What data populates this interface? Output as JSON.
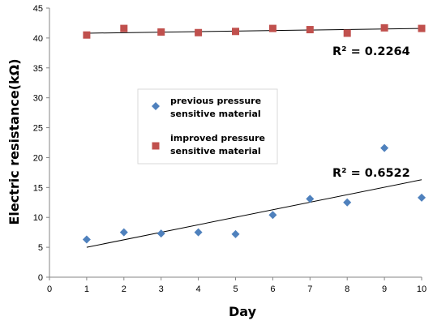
{
  "chart_data": {
    "type": "scatter",
    "xlabel": "Day",
    "ylabel": "Electric resistance(kΩ)",
    "xlim": [
      0,
      10
    ],
    "ylim": [
      0,
      45
    ],
    "xticks": [
      "0",
      "1",
      "2",
      "3",
      "4",
      "5",
      "6",
      "7",
      "8",
      "9",
      "10"
    ],
    "yticks": [
      "0",
      "5",
      "10",
      "15",
      "20",
      "25",
      "30",
      "35",
      "40",
      "45"
    ],
    "grid": false,
    "legend_position": "center",
    "series": [
      {
        "name": [
          "previous pressure",
          "sensitive material"
        ],
        "marker": "diamond",
        "color": "#4F81BD",
        "x": [
          1,
          2,
          3,
          4,
          5,
          6,
          7,
          8,
          9,
          10
        ],
        "y": [
          6.3,
          7.5,
          7.3,
          7.5,
          7.2,
          10.4,
          13.1,
          12.5,
          21.6,
          13.3
        ],
        "trendline": {
          "x": [
            1,
            10
          ],
          "y": [
            5.0,
            16.3
          ]
        },
        "r2_label": "R² = 0.6522"
      },
      {
        "name": [
          "improved pressure",
          "sensitive material"
        ],
        "marker": "square",
        "color": "#C0504D",
        "x": [
          1,
          2,
          3,
          4,
          5,
          6,
          7,
          8,
          9,
          10
        ],
        "y": [
          40.5,
          41.6,
          41.0,
          40.9,
          41.1,
          41.6,
          41.4,
          40.8,
          41.7,
          41.6
        ],
        "trendline": {
          "x": [
            1,
            10
          ],
          "y": [
            40.8,
            41.6
          ]
        },
        "r2_label": "R² = 0.2264"
      }
    ]
  }
}
